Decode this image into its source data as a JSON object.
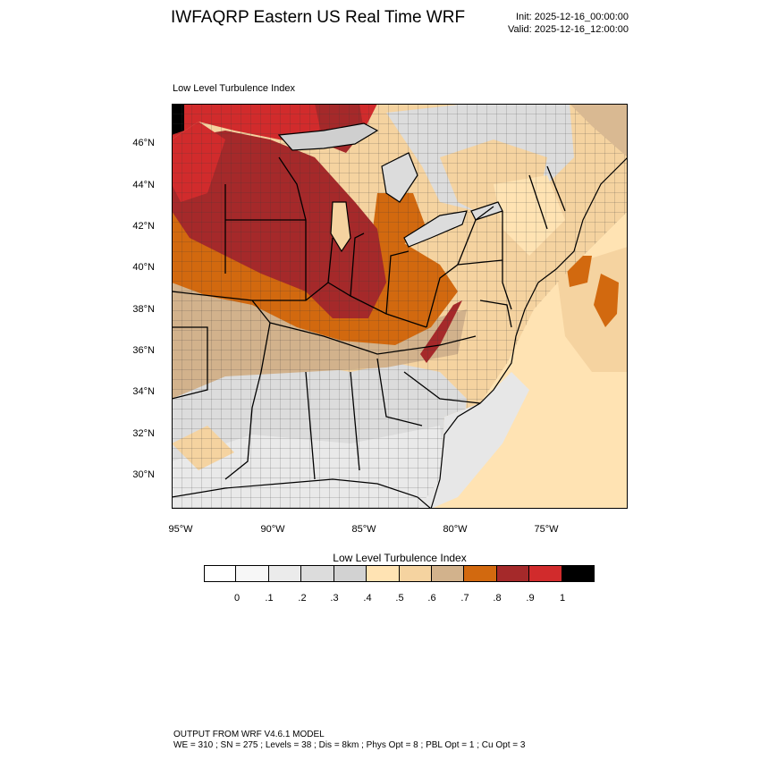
{
  "header": {
    "title": "IWFAQRP Eastern US Real Time WRF",
    "init": "Init: 2025-12-16_00:00:00",
    "valid": "Valid: 2025-12-16_12:00:00"
  },
  "map": {
    "subtitle": "Low Level Turbulence Index",
    "lat_labels": [
      "46°N",
      "44°N",
      "42°N",
      "40°N",
      "38°N",
      "36°N",
      "34°N",
      "32°N",
      "30°N"
    ],
    "lon_labels": [
      "95°W",
      "90°W",
      "85°W",
      "80°W",
      "75°W"
    ],
    "region": "Eastern United States",
    "overlays": [
      "state boundaries",
      "county boundaries",
      "coastlines",
      "lakes"
    ]
  },
  "colorbar": {
    "title": "Low Level Turbulence Index",
    "ticks": [
      "0",
      ".1",
      ".2",
      ".3",
      ".4",
      ".5",
      ".6",
      ".7",
      ".8",
      ".9",
      "1"
    ],
    "colors": [
      "#ffffff",
      "#f7f7f7",
      "#ebebeb",
      "#dcdcdc",
      "#d2d2d2",
      "#ffe3b3",
      "#f5d3a0",
      "#d2b28c",
      "#d2690f",
      "#a5292a",
      "#d12b2c",
      "#000000"
    ]
  },
  "footer": {
    "line1": "OUTPUT FROM WRF V4.6.1 MODEL",
    "line2": "WE = 310 ; SN = 275 ; Levels = 38 ; Dis = 8km ; Phys Opt = 8 ; PBL Opt = 1 ; Cu Opt = 3"
  }
}
